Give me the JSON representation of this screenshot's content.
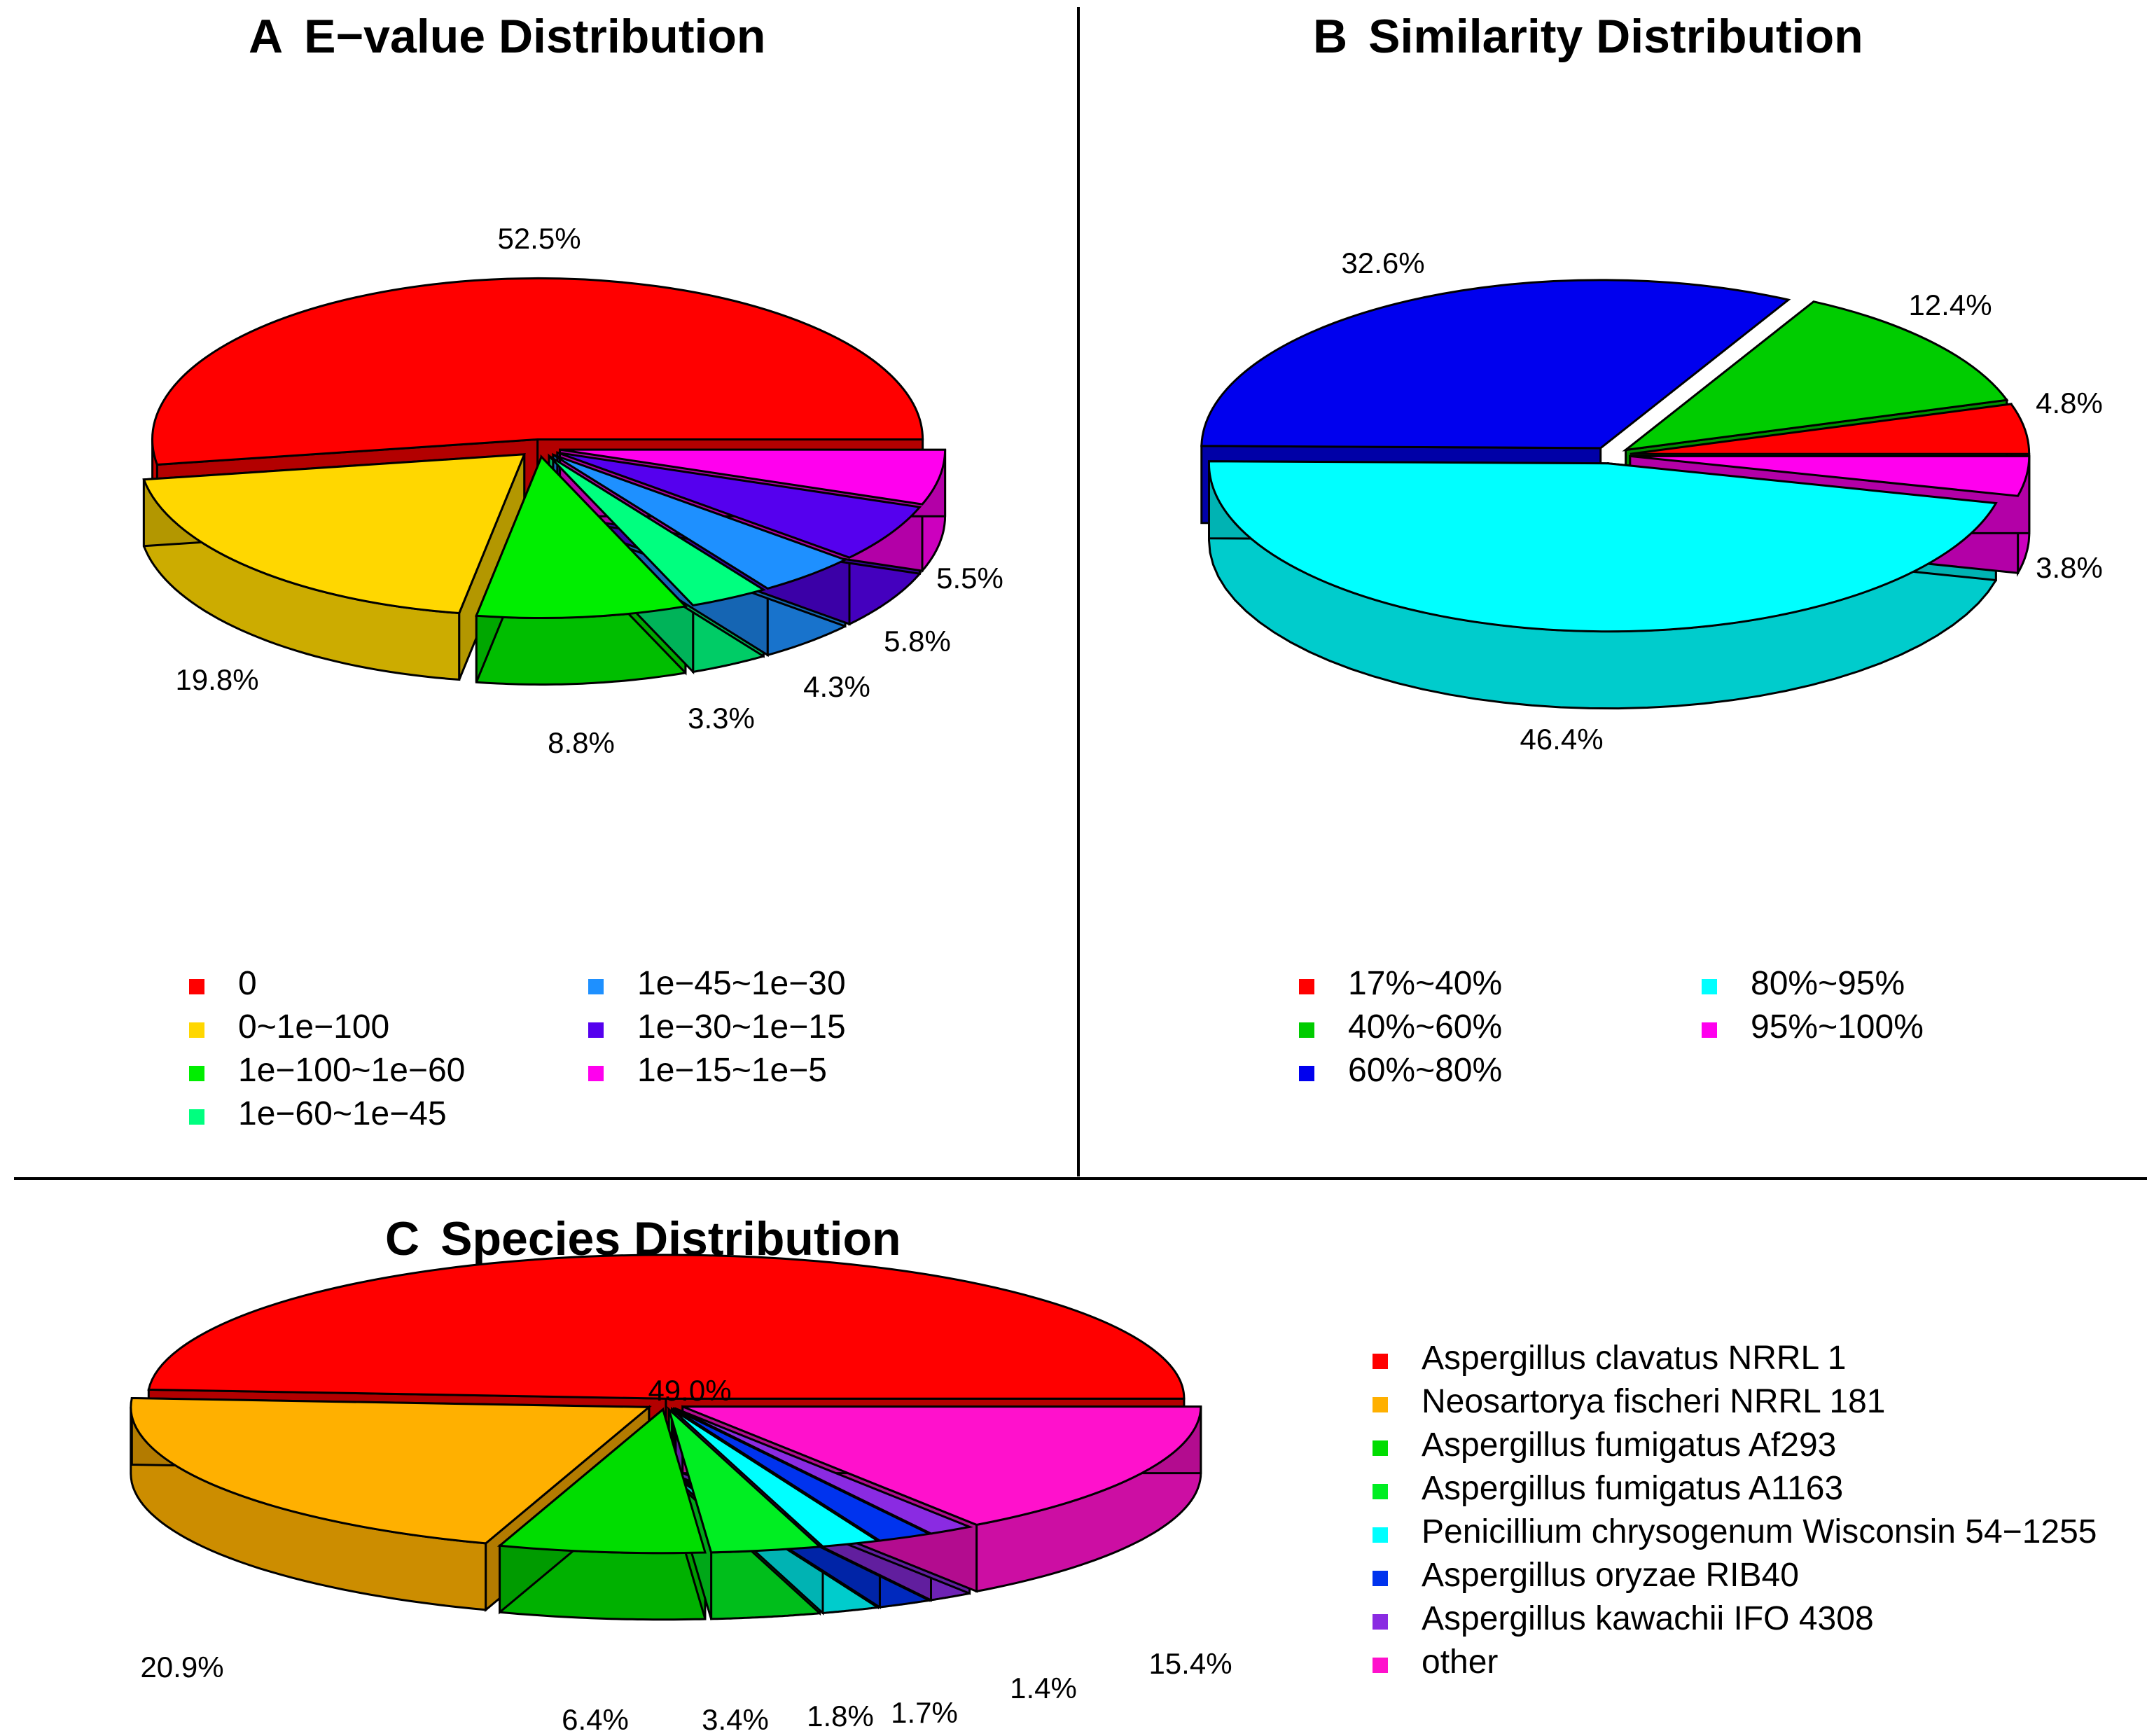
{
  "chart_data": [
    {
      "type": "pie",
      "panel": "A",
      "title": "E−value Distribution",
      "slices": [
        {
          "label": "0",
          "value": 52.5,
          "value_label": "52.5%",
          "color": "#ff0000"
        },
        {
          "label": "0~1e−100",
          "value": 19.8,
          "value_label": "19.8%",
          "color": "#ffd700"
        },
        {
          "label": "1e−100~1e−60",
          "value": 8.8,
          "value_label": "8.8%",
          "color": "#00ee00"
        },
        {
          "label": "1e−60~1e−45",
          "value": 3.3,
          "value_label": "3.3%",
          "color": "#00ff7f"
        },
        {
          "label": "1e−45~1e−30",
          "value": 4.3,
          "value_label": "4.3%",
          "color": "#1e90ff"
        },
        {
          "label": "1e−30~1e−15",
          "value": 5.8,
          "value_label": "5.8%",
          "color": "#5500ee"
        },
        {
          "label": "1e−15~1e−5",
          "value": 5.5,
          "value_label": "5.5%",
          "color": "#ff00ee"
        }
      ]
    },
    {
      "type": "pie",
      "panel": "B",
      "title": "Similarity Distribution",
      "slices": [
        {
          "label": "17%~40%",
          "value": 4.8,
          "value_label": "4.8%",
          "color": "#ff0000"
        },
        {
          "label": "40%~60%",
          "value": 12.4,
          "value_label": "12.4%",
          "color": "#00cc00"
        },
        {
          "label": "60%~80%",
          "value": 32.6,
          "value_label": "32.6%",
          "color": "#0000ee"
        },
        {
          "label": "80%~95%",
          "value": 46.4,
          "value_label": "46.4%",
          "color": "#00ffff"
        },
        {
          "label": "95%~100%",
          "value": 3.8,
          "value_label": "3.8%",
          "color": "#ff00ee"
        }
      ]
    },
    {
      "type": "pie",
      "panel": "C",
      "title": "Species Distribution",
      "slices": [
        {
          "label": "Aspergillus clavatus NRRL 1",
          "value": 49.0,
          "value_label": "49.0%",
          "color": "#ff0000"
        },
        {
          "label": "Neosartorya fischeri NRRL 181",
          "value": 20.9,
          "value_label": "20.9%",
          "color": "#ffb000"
        },
        {
          "label": "Aspergillus fumigatus Af293",
          "value": 6.4,
          "value_label": "6.4%",
          "color": "#00dd00"
        },
        {
          "label": "Aspergillus fumigatus A1163",
          "value": 3.4,
          "value_label": "3.4%",
          "color": "#00ee22"
        },
        {
          "label": "Penicillium chrysogenum Wisconsin 54−1255",
          "value": 1.8,
          "value_label": "1.8%",
          "color": "#00ffff"
        },
        {
          "label": "Aspergillus oryzae RIB40",
          "value": 1.7,
          "value_label": "1.7%",
          "color": "#0033ee"
        },
        {
          "label": "Aspergillus kawachii IFO 4308",
          "value": 1.4,
          "value_label": "1.4%",
          "color": "#8a2be2"
        },
        {
          "label": "other",
          "value": 15.4,
          "value_label": "15.4%",
          "color": "#ff11cc"
        }
      ]
    }
  ]
}
